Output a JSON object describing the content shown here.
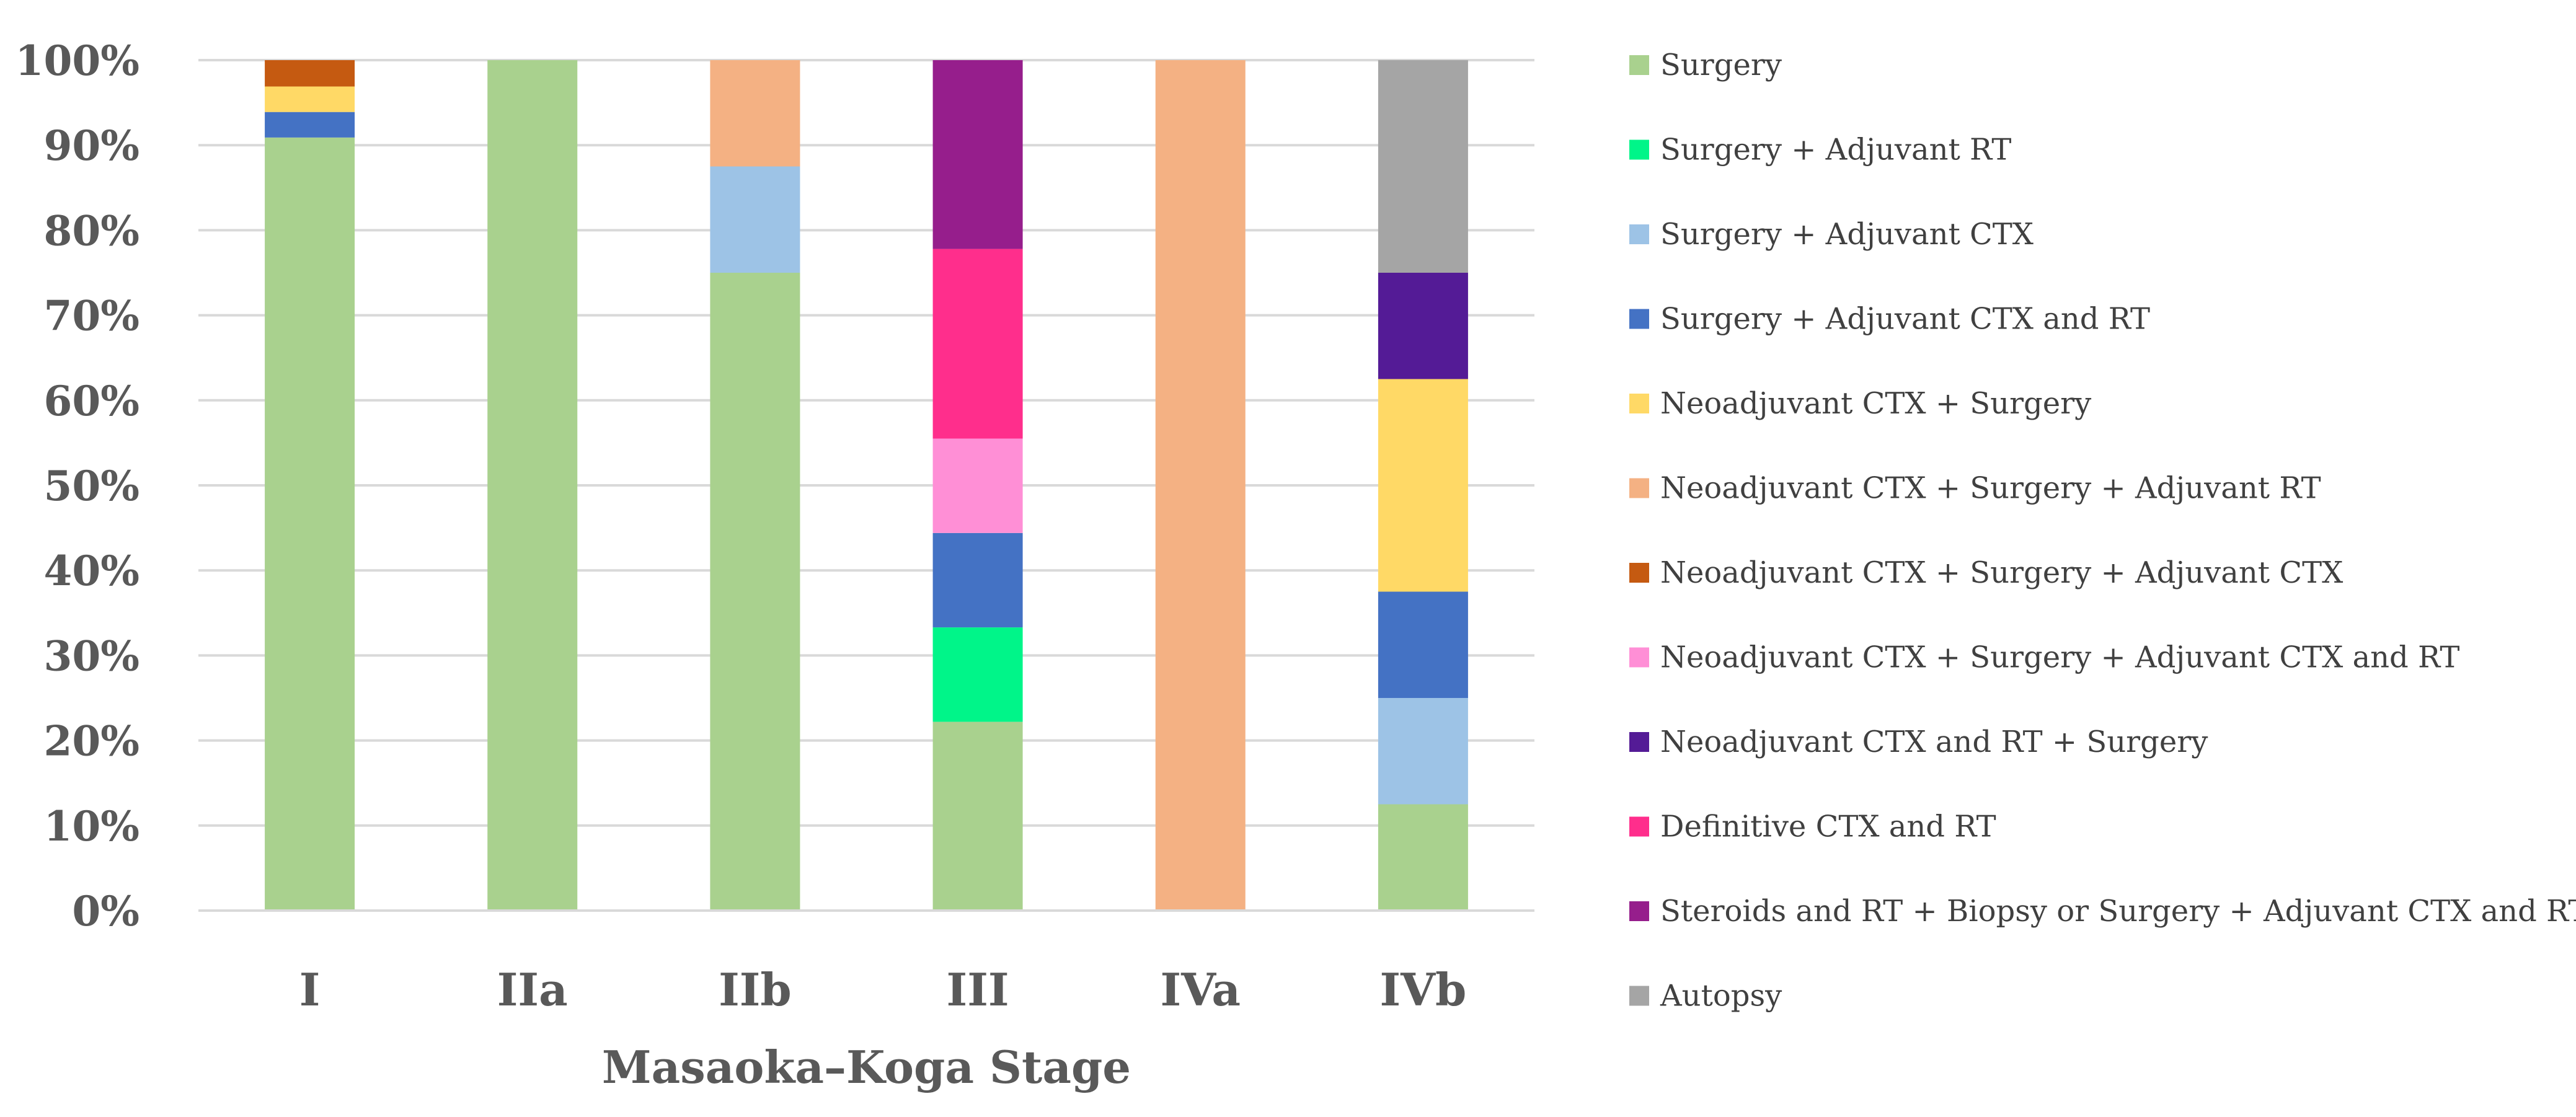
{
  "chart_data": {
    "type": "bar",
    "stacked": true,
    "title": "",
    "xlabel": "Masaoka–Koga Stage",
    "ylabel": "",
    "ylim": [
      0,
      100
    ],
    "yticks": [
      "0%",
      "10%",
      "20%",
      "30%",
      "40%",
      "50%",
      "60%",
      "70%",
      "80%",
      "90%",
      "100%"
    ],
    "categories": [
      "I",
      "IIa",
      "IIb",
      "III",
      "IVa",
      "IVb"
    ],
    "legend_position": "right",
    "series": [
      {
        "name": "Surgery",
        "color": "#a9d18e",
        "values": [
          90.9,
          100,
          75,
          22.2,
          0,
          12.5
        ]
      },
      {
        "name": "Surgery + Adjuvant RT",
        "color": "#00f589",
        "values": [
          0,
          0,
          0,
          11.1,
          0,
          0
        ]
      },
      {
        "name": "Surgery + Adjuvant CTX",
        "color": "#9dc3e6",
        "values": [
          0,
          0,
          12.5,
          0,
          0,
          12.5
        ]
      },
      {
        "name": "Surgery + Adjuvant CTX and RT",
        "color": "#4472c4",
        "values": [
          3.0,
          0,
          0,
          11.1,
          0,
          12.5
        ]
      },
      {
        "name": "Neoadjuvant CTX + Surgery",
        "color": "#ffd966",
        "values": [
          3.0,
          0,
          0,
          0,
          0,
          25
        ]
      },
      {
        "name": "Neoadjuvant CTX + Surgery + Adjuvant RT",
        "color": "#f4b183",
        "values": [
          0,
          0,
          12.5,
          0,
          100,
          0
        ]
      },
      {
        "name": "Neoadjuvant CTX + Surgery + Adjuvant CTX",
        "color": "#c55a11",
        "values": [
          3.1,
          0,
          0,
          0,
          0,
          0
        ]
      },
      {
        "name": "Neoadjuvant CTX + Surgery + Adjuvant CTX and RT",
        "color": "#ff8fd6",
        "values": [
          0,
          0,
          0,
          11.1,
          0,
          0
        ]
      },
      {
        "name": "Neoadjuvant CTX and RT + Surgery",
        "color": "#541b96",
        "values": [
          0,
          0,
          0,
          0,
          0,
          12.5
        ]
      },
      {
        "name": "Definitive CTX and RT",
        "color": "#ff2e8c",
        "values": [
          0,
          0,
          0,
          22.3,
          0,
          0
        ]
      },
      {
        "name": "Steroids and RT + Biopsy or Surgery + Adjuvant CTX and RT",
        "color": "#961e8c",
        "values": [
          0,
          0,
          0,
          22.2,
          0,
          0
        ]
      },
      {
        "name": "Autopsy",
        "color": "#a5a5a5",
        "values": [
          0,
          0,
          0,
          0,
          0,
          25
        ]
      }
    ]
  }
}
